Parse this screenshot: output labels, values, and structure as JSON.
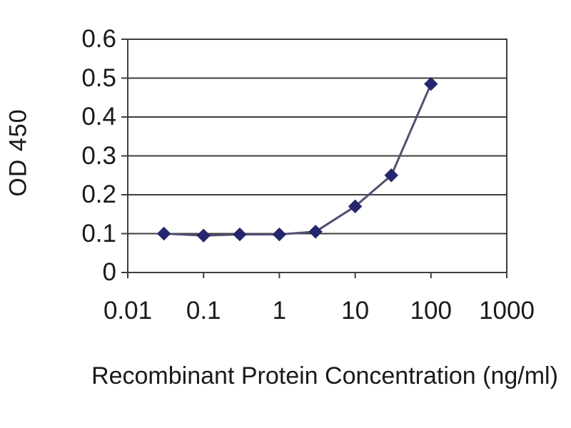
{
  "chart_data": {
    "type": "line",
    "x": [
      0.03,
      0.1,
      0.3,
      1,
      3,
      10,
      30,
      100
    ],
    "series": [
      {
        "name": "OD 450",
        "values": [
          0.1,
          0.095,
          0.098,
          0.098,
          0.105,
          0.17,
          0.25,
          0.485
        ]
      }
    ],
    "title": "",
    "xlabel": "Recombinant Protein Concentration (ng/ml)",
    "ylabel": "OD 450",
    "x_scale": "log",
    "xlim": [
      0.01,
      1000
    ],
    "ylim": [
      0,
      0.6
    ],
    "x_ticks": [
      "0.01",
      "0.1",
      "1",
      "10",
      "100",
      "1000"
    ],
    "x_tick_values": [
      0.01,
      0.1,
      1,
      10,
      100,
      1000
    ],
    "y_ticks": [
      "0",
      "0.1",
      "0.2",
      "0.3",
      "0.4",
      "0.5",
      "0.6"
    ],
    "y_tick_values": [
      0,
      0.1,
      0.2,
      0.3,
      0.4,
      0.5,
      0.6
    ],
    "grid": "horizontal",
    "legend": "none",
    "marker": "diamond",
    "colors": {
      "line": "#50506e",
      "marker": "#26266e",
      "grid": "#3d3d3d",
      "axis": "#3d3d3d",
      "text": "#1a1a1a",
      "background": "#ffffff"
    }
  }
}
